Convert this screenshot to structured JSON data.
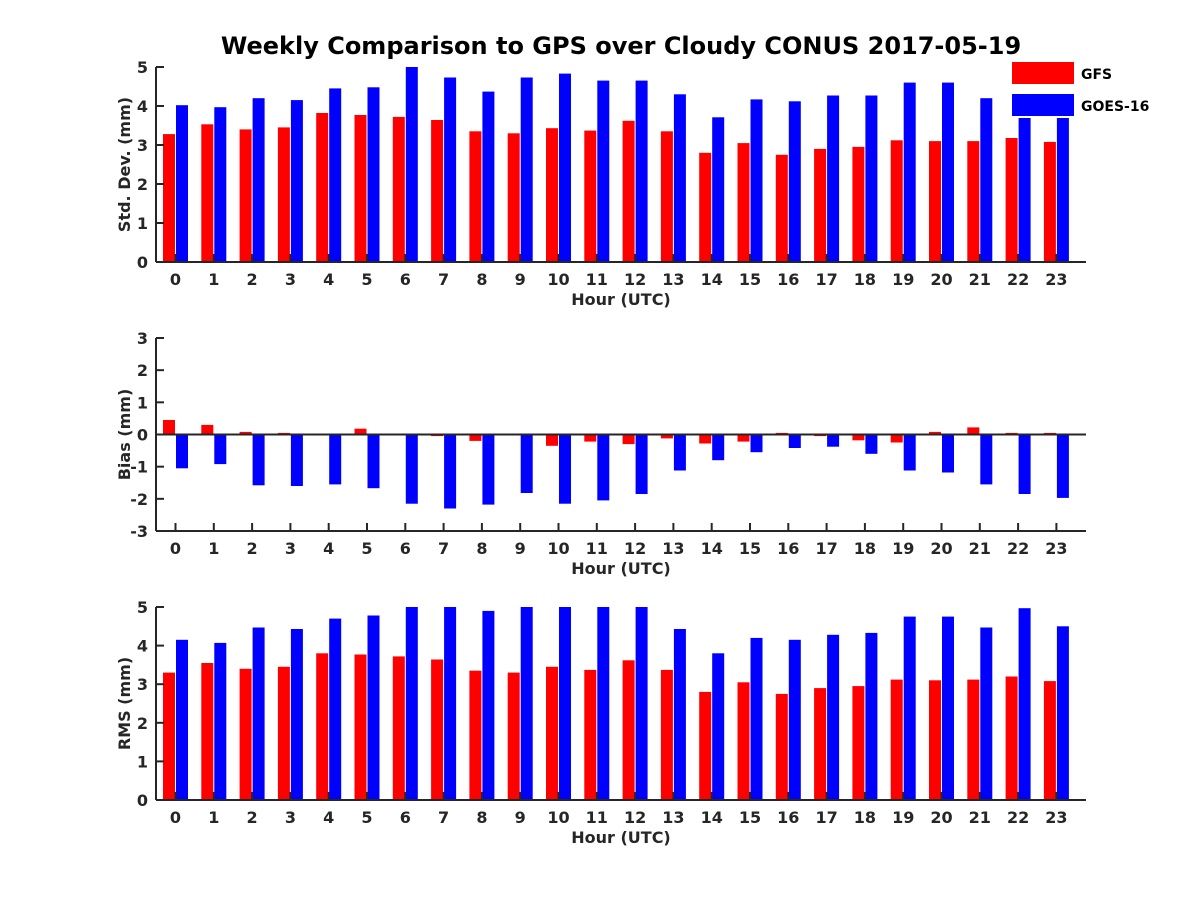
{
  "title": "Weekly Comparison to GPS over Cloudy CONUS 2017-05-19",
  "legend": [
    {
      "name": "GFS",
      "color": "#ff0000"
    },
    {
      "name": "GOES-16",
      "color": "#0000ff"
    }
  ],
  "chart_data": [
    {
      "type": "bar",
      "ylabel": "Std. Dev. (mm)",
      "xlabel": "Hour (UTC)",
      "ylim": [
        0,
        5
      ],
      "yticks": [
        0,
        1,
        2,
        3,
        4,
        5
      ],
      "categories": [
        "0",
        "1",
        "2",
        "3",
        "4",
        "5",
        "6",
        "7",
        "8",
        "9",
        "10",
        "11",
        "12",
        "13",
        "14",
        "15",
        "16",
        "17",
        "18",
        "19",
        "20",
        "21",
        "22",
        "23"
      ],
      "series": [
        {
          "name": "GFS",
          "color": "#ff0000",
          "values": [
            3.28,
            3.53,
            3.4,
            3.45,
            3.82,
            3.77,
            3.72,
            3.64,
            3.35,
            3.3,
            3.43,
            3.37,
            3.62,
            3.35,
            2.8,
            3.05,
            2.75,
            2.9,
            2.95,
            3.12,
            3.1,
            3.1,
            3.18,
            3.08
          ]
        },
        {
          "name": "GOES-16",
          "color": "#0000ff",
          "values": [
            4.02,
            3.97,
            4.2,
            4.15,
            4.45,
            4.48,
            5.0,
            4.73,
            4.37,
            4.73,
            4.83,
            4.65,
            4.65,
            4.3,
            3.71,
            4.17,
            4.12,
            4.27,
            4.27,
            4.6,
            4.6,
            4.2,
            4.6,
            3.8
          ]
        }
      ]
    },
    {
      "type": "bar",
      "ylabel": "Bias (mm)",
      "xlabel": "Hour (UTC)",
      "ylim": [
        -3,
        3
      ],
      "yticks": [
        -3,
        -2,
        -1,
        0,
        1,
        2,
        3
      ],
      "categories": [
        "0",
        "1",
        "2",
        "3",
        "4",
        "5",
        "6",
        "7",
        "8",
        "9",
        "10",
        "11",
        "12",
        "13",
        "14",
        "15",
        "16",
        "17",
        "18",
        "19",
        "20",
        "21",
        "22",
        "23"
      ],
      "series": [
        {
          "name": "GFS",
          "color": "#ff0000",
          "values": [
            0.45,
            0.3,
            0.08,
            0.05,
            0.0,
            0.18,
            0.0,
            -0.05,
            -0.2,
            0.0,
            -0.35,
            -0.22,
            -0.3,
            -0.12,
            -0.28,
            -0.22,
            0.05,
            -0.05,
            -0.18,
            -0.25,
            0.08,
            0.22,
            0.05,
            0.05
          ]
        },
        {
          "name": "GOES-16",
          "color": "#0000ff",
          "values": [
            -1.05,
            -0.92,
            -1.58,
            -1.6,
            -1.55,
            -1.67,
            -2.15,
            -2.3,
            -2.18,
            -1.82,
            -2.15,
            -2.05,
            -1.85,
            -1.12,
            -0.8,
            -0.55,
            -0.42,
            -0.38,
            -0.6,
            -1.12,
            -1.18,
            -1.55,
            -1.85,
            -1.97
          ]
        }
      ]
    },
    {
      "type": "bar",
      "ylabel": "RMS (mm)",
      "xlabel": "Hour (UTC)",
      "ylim": [
        0,
        5
      ],
      "yticks": [
        0,
        1,
        2,
        3,
        4,
        5
      ],
      "categories": [
        "0",
        "1",
        "2",
        "3",
        "4",
        "5",
        "6",
        "7",
        "8",
        "9",
        "10",
        "11",
        "12",
        "13",
        "14",
        "15",
        "16",
        "17",
        "18",
        "19",
        "20",
        "21",
        "22",
        "23"
      ],
      "series": [
        {
          "name": "GFS",
          "color": "#ff0000",
          "values": [
            3.3,
            3.55,
            3.4,
            3.45,
            3.8,
            3.77,
            3.72,
            3.64,
            3.35,
            3.3,
            3.45,
            3.37,
            3.62,
            3.37,
            2.8,
            3.05,
            2.75,
            2.9,
            2.95,
            3.12,
            3.1,
            3.12,
            3.2,
            3.08
          ]
        },
        {
          "name": "GOES-16",
          "color": "#0000ff",
          "values": [
            4.15,
            4.07,
            4.47,
            4.43,
            4.7,
            4.78,
            5.0,
            5.0,
            4.9,
            5.0,
            5.0,
            5.0,
            5.0,
            4.43,
            3.8,
            4.2,
            4.15,
            4.28,
            4.33,
            4.75,
            4.75,
            4.47,
            4.97,
            4.5
          ]
        }
      ]
    }
  ]
}
